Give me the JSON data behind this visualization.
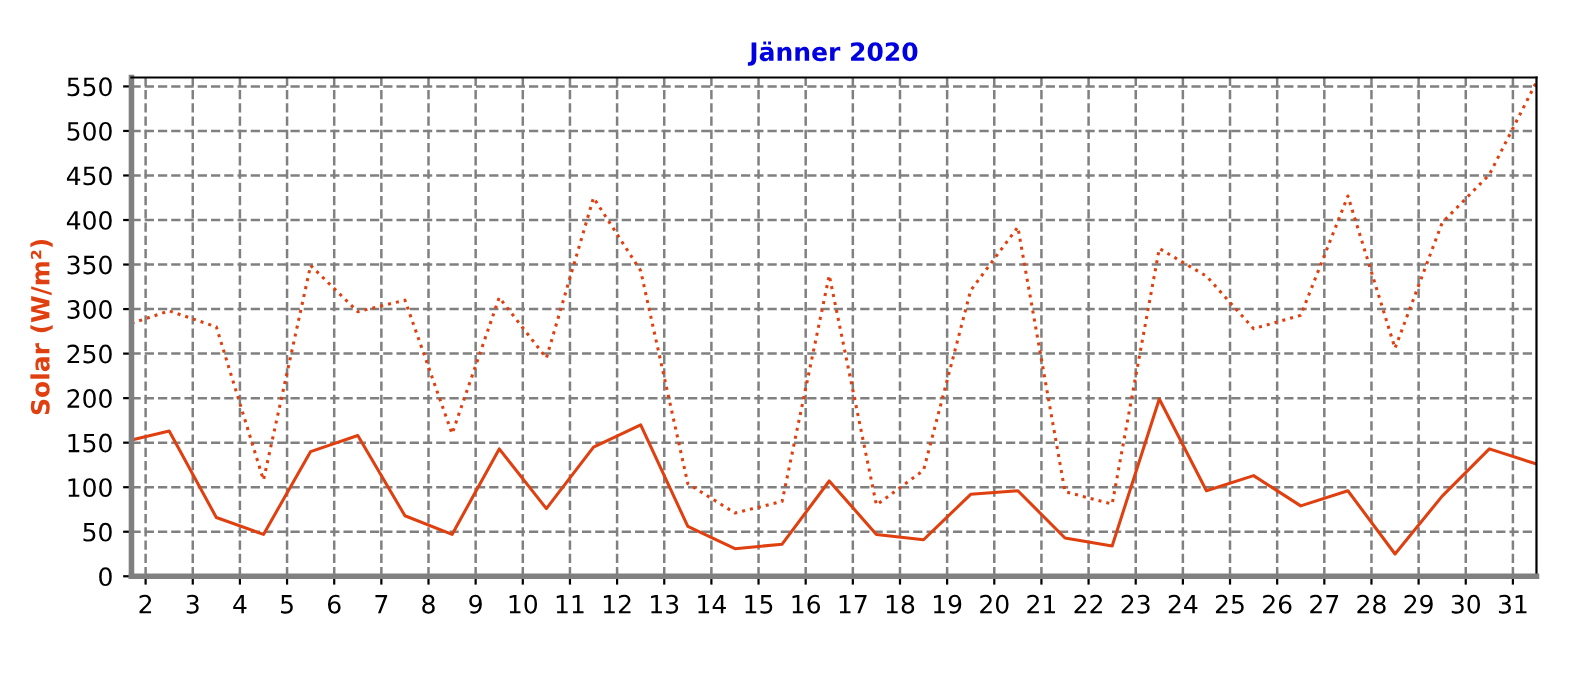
{
  "chart_data": {
    "type": "line",
    "title": "Jänner 2020",
    "ylabel": "Solar (W/m²)",
    "x": [
      1.7,
      2.5,
      3.5,
      4.5,
      5.5,
      6.5,
      7.5,
      8.5,
      9.5,
      10.5,
      11.5,
      12.5,
      13.5,
      14.5,
      15.5,
      16.5,
      17.5,
      18.5,
      19.5,
      20.5,
      21.5,
      22.5,
      23.5,
      24.5,
      25.5,
      26.5,
      27.5,
      28.5,
      29.5,
      30.5,
      31.5
    ],
    "series": [
      {
        "color": "#e04010",
        "line_style": "solid",
        "values": [
          153,
          163,
          66,
          47,
          140,
          158,
          68,
          47,
          143,
          76,
          145,
          170,
          56,
          31,
          36,
          107,
          47,
          41,
          92,
          96,
          43,
          34,
          199,
          96,
          113,
          79,
          96,
          25,
          90,
          143,
          126
        ]
      },
      {
        "color": "#e04010",
        "line_style": "dotted",
        "values": [
          284,
          298,
          280,
          108,
          349,
          297,
          310,
          160,
          313,
          245,
          425,
          343,
          104,
          71,
          84,
          338,
          80,
          119,
          321,
          392,
          95,
          81,
          368,
          337,
          278,
          293,
          427,
          256,
          397,
          451,
          555
        ]
      }
    ],
    "xlim": [
      1.7,
      31.5
    ],
    "xticks": [
      2,
      3,
      4,
      5,
      6,
      7,
      8,
      9,
      10,
      11,
      12,
      13,
      14,
      15,
      16,
      17,
      18,
      19,
      20,
      21,
      22,
      23,
      24,
      25,
      26,
      27,
      28,
      29,
      30,
      31
    ],
    "ylim": [
      0,
      560
    ],
    "yticks": [
      0,
      50,
      100,
      150,
      200,
      250,
      300,
      350,
      400,
      450,
      500,
      550
    ],
    "grid": true,
    "legend": false,
    "marker": "none"
  }
}
